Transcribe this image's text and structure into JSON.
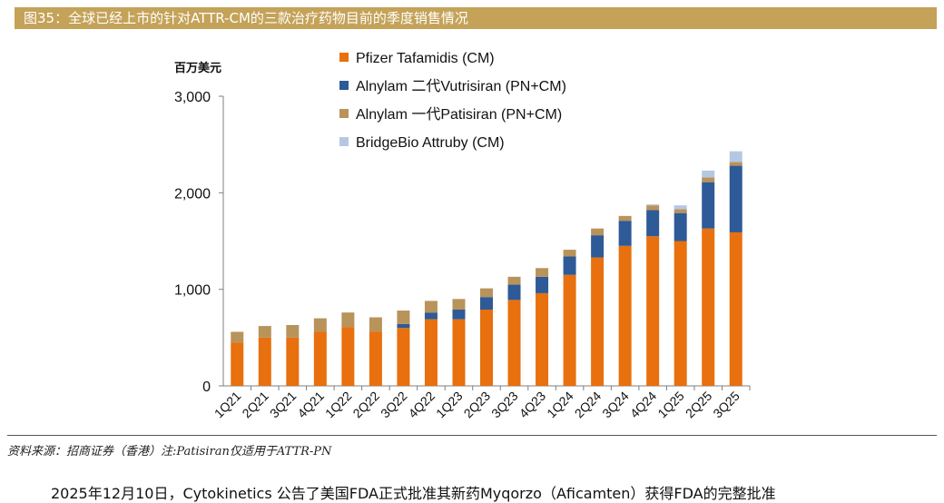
{
  "figure": {
    "title": "图35：全球已经上市的针对ATTR-CM的三款治疗药物目前的季度销售情况",
    "source": "资料来源：招商证券（香港）注:Patisiran仅适用于ATTR-PN",
    "body_text": "2025年12月10日，Cytokinetics 公告了美国FDA正式批准其新药Myqorzo（Aficamten）获得FDA的完整批准"
  },
  "chart_data": {
    "type": "bar",
    "stacked": true,
    "unit_label": "百万美元",
    "ylim": [
      0,
      3000
    ],
    "yticks": [
      "0",
      "1,000",
      "2,000",
      "3,000"
    ],
    "ytick_values": [
      0,
      1000,
      2000,
      3000
    ],
    "legend_placement": "top",
    "grid": false,
    "categories": [
      "1Q21",
      "2Q21",
      "3Q21",
      "4Q21",
      "1Q22",
      "2Q22",
      "3Q22",
      "4Q22",
      "1Q23",
      "2Q23",
      "3Q23",
      "4Q23",
      "1Q24",
      "2Q24",
      "3Q24",
      "4Q24",
      "1Q25",
      "2Q25",
      "3Q25"
    ],
    "series": [
      {
        "name": "Pfizer Tafamidis (CM)",
        "color": "#e8700e",
        "values": [
          450,
          500,
          500,
          560,
          610,
          560,
          600,
          690,
          690,
          790,
          890,
          960,
          1150,
          1330,
          1450,
          1550,
          1500,
          1630,
          1590
        ]
      },
      {
        "name": "Alnylam 二代Vutrisiran (PN+CM)",
        "color": "#2e5a97",
        "values": [
          0,
          0,
          0,
          0,
          0,
          0,
          40,
          70,
          100,
          130,
          160,
          170,
          190,
          230,
          260,
          270,
          290,
          480,
          690
        ]
      },
      {
        "name": "Alnylam 一代Patisiran (PN+CM)",
        "color": "#b8935a",
        "values": [
          110,
          120,
          130,
          140,
          150,
          150,
          140,
          120,
          110,
          90,
          80,
          90,
          70,
          70,
          50,
          50,
          40,
          50,
          40
        ]
      },
      {
        "name": "BridgeBio Attruby (CM)",
        "color": "#b6c7e3",
        "values": [
          0,
          0,
          0,
          0,
          0,
          0,
          0,
          0,
          0,
          0,
          0,
          0,
          0,
          0,
          0,
          10,
          40,
          70,
          110
        ]
      }
    ]
  }
}
